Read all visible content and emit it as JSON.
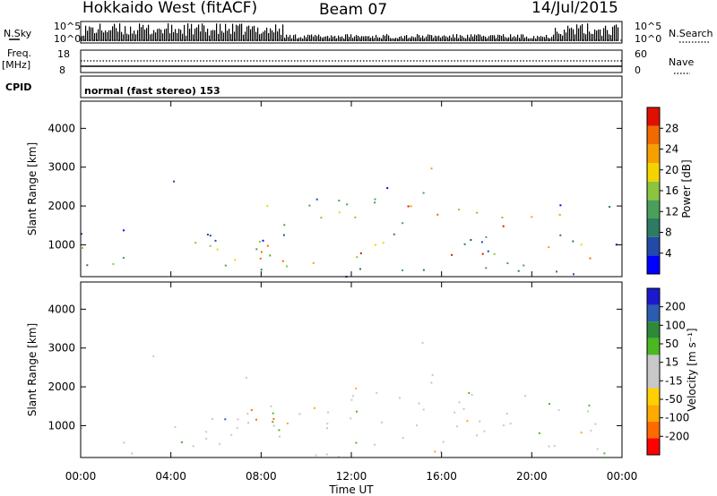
{
  "header": {
    "station": "Hokkaido West (fitACF)",
    "beam": "Beam 07",
    "date": "14/Jul/2015"
  },
  "strip_panels": {
    "nsky_label": "N.Sky",
    "nsearch_label": "N.Search",
    "freq_label": "Freq.",
    "freq_unit": "[MHz]",
    "nave_label": "Nave",
    "cpid_label": "CPID",
    "cpid_value": "normal (fast stereo) 153",
    "noise_left_top": "10^5",
    "noise_left_bottom": "10^0",
    "noise_right_top": "10^5",
    "noise_right_bottom": "10^0",
    "freq_top": "18",
    "freq_bottom": "8",
    "nave_top": "60",
    "nave_bottom": "0"
  },
  "colors": {
    "power_scale": [
      "#0000ff",
      "#234aa6",
      "#2e7a64",
      "#4aa05a",
      "#8cc440",
      "#f4d400",
      "#f5a000",
      "#f06a00",
      "#e01000"
    ],
    "velocity_scale": [
      "#ff0000",
      "#ff6a00",
      "#ffaa00",
      "#ffd000",
      "#c8c8c8",
      "#c8c8c8",
      "#4ab820",
      "#2e8a3a",
      "#2a5cb0",
      "#1a1acc"
    ]
  },
  "chart_data": [
    {
      "type": "heatmap",
      "name": "power-panel",
      "xlabel": "Time UT",
      "ylabel": "Slant Range [km]",
      "x_ticks": [
        "00:00",
        "04:00",
        "08:00",
        "12:00",
        "16:00",
        "20:00",
        "00:00"
      ],
      "x_range_hours": [
        0,
        24
      ],
      "y_ticks": [
        1000,
        2000,
        3000,
        4000
      ],
      "y_range_km": [
        180,
        4700
      ],
      "colorbar": {
        "label": "Power [dB]",
        "ticks": [
          "4",
          "8",
          "12",
          "16",
          "20",
          "24",
          "28"
        ]
      }
    },
    {
      "type": "heatmap",
      "name": "velocity-panel",
      "xlabel": "Time UT",
      "ylabel": "Slant Range [km]",
      "x_ticks": [
        "00:00",
        "04:00",
        "08:00",
        "12:00",
        "16:00",
        "20:00",
        "00:00"
      ],
      "x_range_hours": [
        0,
        24
      ],
      "y_ticks": [
        1000,
        2000,
        3000,
        4000
      ],
      "y_range_km": [
        180,
        4700
      ],
      "colorbar": {
        "label": "Velocity [m s⁻¹]",
        "ticks": [
          "-200",
          "-100",
          "-50",
          "-15",
          "15",
          "50",
          "100",
          "200"
        ]
      }
    }
  ]
}
